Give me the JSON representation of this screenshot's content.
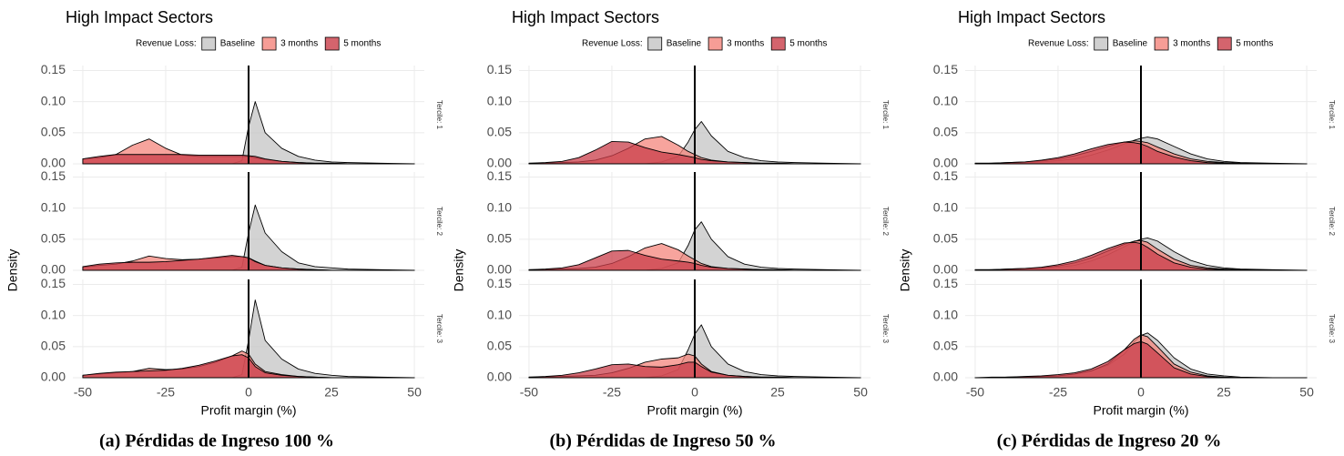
{
  "chart_data": [
    {
      "type": "density",
      "title": "High Impact Sectors",
      "legend_title": "Revenue Loss:",
      "x_label": "Profit margin (%)",
      "y_label": "Density",
      "caption": "(a) Pérdidas de Ingreso 100 %",
      "vline": 0,
      "xlim": [
        -53,
        53
      ],
      "xticks": [
        -50,
        -25,
        0,
        25,
        50
      ],
      "ylim": [
        0,
        0.158
      ],
      "yticks": [
        {
          "value": 0,
          "label": "0.00"
        },
        {
          "value": 0.05,
          "label": "0.05"
        },
        {
          "value": 0.1,
          "label": "0.10"
        },
        {
          "value": 0.15,
          "label": "0.15"
        }
      ],
      "grid": true,
      "series": [
        {
          "name": "Baseline",
          "color": "#c4c4c4"
        },
        {
          "name": "3 months",
          "color": "#f4857c"
        },
        {
          "name": "5 months",
          "color": "#c93d49"
        }
      ],
      "x": [
        -50,
        -45,
        -40,
        -35,
        -30,
        -25,
        -20,
        -15,
        -10,
        -5,
        -2,
        0,
        2,
        5,
        10,
        15,
        20,
        25,
        30,
        40,
        50
      ],
      "facets": [
        {
          "label": "Tercile: 1",
          "values": [
            [
              0,
              0,
              0,
              0,
              0,
              0,
              0,
              0,
              0,
              0,
              0.005,
              0.06,
              0.1,
              0.05,
              0.025,
              0.012,
              0.006,
              0.003,
              0.002,
              0.001,
              0
            ],
            [
              0.008,
              0.01,
              0.015,
              0.03,
              0.04,
              0.025,
              0.014,
              0.012,
              0.012,
              0.012,
              0.012,
              0.012,
              0.01,
              0.007,
              0.004,
              0.002,
              0.001,
              0.001,
              0,
              0,
              0
            ],
            [
              0.008,
              0.012,
              0.015,
              0.015,
              0.015,
              0.015,
              0.015,
              0.014,
              0.014,
              0.014,
              0.014,
              0.013,
              0.012,
              0.008,
              0.004,
              0.002,
              0.001,
              0.001,
              0,
              0,
              0
            ]
          ]
        },
        {
          "label": "Tercile: 2",
          "values": [
            [
              0,
              0,
              0,
              0,
              0,
              0,
              0,
              0,
              0,
              0,
              0.005,
              0.06,
              0.105,
              0.06,
              0.03,
              0.012,
              0.006,
              0.004,
              0.002,
              0.001,
              0
            ],
            [
              0.005,
              0.008,
              0.01,
              0.015,
              0.023,
              0.019,
              0.017,
              0.018,
              0.02,
              0.022,
              0.022,
              0.02,
              0.015,
              0.008,
              0.004,
              0.002,
              0.001,
              0,
              0,
              0,
              0
            ],
            [
              0.006,
              0.01,
              0.012,
              0.013,
              0.013,
              0.014,
              0.016,
              0.018,
              0.021,
              0.024,
              0.022,
              0.02,
              0.014,
              0.008,
              0.004,
              0.002,
              0.001,
              0,
              0,
              0,
              0
            ]
          ]
        },
        {
          "label": "Tercile: 3",
          "values": [
            [
              0,
              0,
              0,
              0,
              0,
              0,
              0,
              0,
              0,
              0,
              0.005,
              0.06,
              0.125,
              0.06,
              0.03,
              0.014,
              0.007,
              0.004,
              0.002,
              0.001,
              0
            ],
            [
              0.004,
              0.006,
              0.008,
              0.01,
              0.015,
              0.013,
              0.014,
              0.018,
              0.025,
              0.035,
              0.043,
              0.038,
              0.022,
              0.01,
              0.005,
              0.002,
              0.001,
              0,
              0,
              0,
              0
            ],
            [
              0.004,
              0.007,
              0.009,
              0.01,
              0.011,
              0.012,
              0.015,
              0.02,
              0.027,
              0.035,
              0.037,
              0.032,
              0.018,
              0.008,
              0.004,
              0.002,
              0.001,
              0,
              0,
              0,
              0
            ]
          ]
        }
      ]
    },
    {
      "type": "density",
      "title": "High Impact Sectors",
      "legend_title": "Revenue Loss:",
      "x_label": "Profit margin (%)",
      "y_label": "Density",
      "caption": "(b) Pérdidas de Ingreso 50 %",
      "vline": 0,
      "xlim": [
        -53,
        53
      ],
      "xticks": [
        -50,
        -25,
        0,
        25,
        50
      ],
      "ylim": [
        0,
        0.158
      ],
      "yticks": [
        {
          "value": 0,
          "label": "0.00"
        },
        {
          "value": 0.05,
          "label": "0.05"
        },
        {
          "value": 0.1,
          "label": "0.10"
        },
        {
          "value": 0.15,
          "label": "0.15"
        }
      ],
      "grid": true,
      "series": [
        {
          "name": "Baseline",
          "color": "#c4c4c4"
        },
        {
          "name": "3 months",
          "color": "#f4857c"
        },
        {
          "name": "5 months",
          "color": "#c93d49"
        }
      ],
      "x": [
        -50,
        -45,
        -40,
        -35,
        -30,
        -25,
        -20,
        -15,
        -10,
        -5,
        -2,
        0,
        2,
        5,
        10,
        15,
        20,
        25,
        30,
        40,
        50
      ],
      "facets": [
        {
          "label": "Tercile: 1",
          "values": [
            [
              0,
              0,
              0,
              0,
              0,
              0,
              0,
              0,
              0.003,
              0.012,
              0.035,
              0.055,
              0.068,
              0.045,
              0.02,
              0.01,
              0.005,
              0.003,
              0.002,
              0.001,
              0
            ],
            [
              0.001,
              0.001,
              0.002,
              0.003,
              0.006,
              0.013,
              0.025,
              0.04,
              0.044,
              0.03,
              0.02,
              0.015,
              0.01,
              0.006,
              0.003,
              0.002,
              0.001,
              0.001,
              0,
              0,
              0
            ],
            [
              0.001,
              0.002,
              0.004,
              0.01,
              0.022,
              0.036,
              0.035,
              0.026,
              0.019,
              0.015,
              0.012,
              0.01,
              0.007,
              0.005,
              0.003,
              0.002,
              0.001,
              0.001,
              0,
              0,
              0
            ]
          ]
        },
        {
          "label": "Tercile: 2",
          "values": [
            [
              0,
              0,
              0,
              0,
              0,
              0,
              0,
              0,
              0.003,
              0.012,
              0.04,
              0.065,
              0.078,
              0.05,
              0.022,
              0.01,
              0.005,
              0.003,
              0.002,
              0.001,
              0
            ],
            [
              0.001,
              0.001,
              0.002,
              0.003,
              0.005,
              0.011,
              0.022,
              0.036,
              0.043,
              0.033,
              0.023,
              0.017,
              0.011,
              0.006,
              0.003,
              0.002,
              0.001,
              0.001,
              0,
              0,
              0
            ],
            [
              0.001,
              0.002,
              0.004,
              0.009,
              0.02,
              0.031,
              0.032,
              0.024,
              0.018,
              0.015,
              0.013,
              0.011,
              0.008,
              0.005,
              0.003,
              0.002,
              0.001,
              0.001,
              0,
              0,
              0
            ]
          ]
        },
        {
          "label": "Tercile: 3",
          "values": [
            [
              0,
              0,
              0,
              0,
              0,
              0,
              0,
              0,
              0.003,
              0.013,
              0.045,
              0.07,
              0.085,
              0.05,
              0.022,
              0.01,
              0.005,
              0.003,
              0.002,
              0.001,
              0
            ],
            [
              0.001,
              0.001,
              0.002,
              0.003,
              0.004,
              0.008,
              0.015,
              0.025,
              0.03,
              0.032,
              0.038,
              0.035,
              0.022,
              0.01,
              0.004,
              0.002,
              0.001,
              0.001,
              0,
              0,
              0
            ],
            [
              0.001,
              0.002,
              0.004,
              0.008,
              0.014,
              0.021,
              0.022,
              0.018,
              0.017,
              0.021,
              0.025,
              0.025,
              0.018,
              0.009,
              0.004,
              0.002,
              0.001,
              0.001,
              0,
              0,
              0
            ]
          ]
        }
      ]
    },
    {
      "type": "density",
      "title": "High Impact Sectors",
      "legend_title": "Revenue Loss:",
      "x_label": "Profit margin (%)",
      "y_label": "Density",
      "caption": "(c) Pérdidas de Ingreso 20 %",
      "vline": 0,
      "xlim": [
        -53,
        53
      ],
      "xticks": [
        -50,
        -25,
        0,
        25,
        50
      ],
      "ylim": [
        0,
        0.158
      ],
      "yticks": [
        {
          "value": 0,
          "label": "0.00"
        },
        {
          "value": 0.05,
          "label": "0.05"
        },
        {
          "value": 0.1,
          "label": "0.10"
        },
        {
          "value": 0.15,
          "label": "0.15"
        }
      ],
      "grid": true,
      "series": [
        {
          "name": "Baseline",
          "color": "#c4c4c4"
        },
        {
          "name": "3 months",
          "color": "#f4857c"
        },
        {
          "name": "5 months",
          "color": "#c93d49"
        }
      ],
      "x": [
        -50,
        -45,
        -40,
        -35,
        -30,
        -25,
        -20,
        -15,
        -10,
        -5,
        -2,
        0,
        2,
        5,
        10,
        15,
        20,
        25,
        30,
        40,
        50
      ],
      "facets": [
        {
          "label": "Tercile: 1",
          "values": [
            [
              0,
              0.001,
              0.001,
              0.002,
              0.003,
              0.005,
              0.008,
              0.014,
              0.022,
              0.032,
              0.038,
              0.041,
              0.043,
              0.04,
              0.028,
              0.016,
              0.008,
              0.004,
              0.002,
              0.001,
              0
            ],
            [
              0.001,
              0.001,
              0.002,
              0.003,
              0.005,
              0.008,
              0.013,
              0.02,
              0.028,
              0.035,
              0.037,
              0.036,
              0.034,
              0.027,
              0.016,
              0.008,
              0.004,
              0.002,
              0.001,
              0,
              0
            ],
            [
              0.001,
              0.001,
              0.002,
              0.003,
              0.006,
              0.01,
              0.016,
              0.024,
              0.031,
              0.035,
              0.034,
              0.032,
              0.028,
              0.02,
              0.011,
              0.005,
              0.002,
              0.001,
              0,
              0,
              0
            ]
          ]
        },
        {
          "label": "Tercile: 2",
          "values": [
            [
              0,
              0.001,
              0.001,
              0.002,
              0.003,
              0.005,
              0.008,
              0.015,
              0.025,
              0.038,
              0.046,
              0.05,
              0.052,
              0.047,
              0.03,
              0.016,
              0.008,
              0.004,
              0.002,
              0.001,
              0
            ],
            [
              0.001,
              0.001,
              0.002,
              0.003,
              0.004,
              0.007,
              0.012,
              0.02,
              0.031,
              0.042,
              0.047,
              0.048,
              0.045,
              0.034,
              0.018,
              0.008,
              0.004,
              0.002,
              0.001,
              0,
              0
            ],
            [
              0.001,
              0.001,
              0.002,
              0.003,
              0.005,
              0.009,
              0.015,
              0.024,
              0.035,
              0.044,
              0.045,
              0.043,
              0.037,
              0.026,
              0.012,
              0.005,
              0.002,
              0.001,
              0,
              0,
              0
            ]
          ]
        },
        {
          "label": "Tercile: 3",
          "values": [
            [
              0,
              0,
              0.001,
              0.001,
              0.002,
              0.003,
              0.006,
              0.011,
              0.02,
              0.038,
              0.058,
              0.068,
              0.072,
              0.06,
              0.032,
              0.014,
              0.006,
              0.003,
              0.001,
              0,
              0
            ],
            [
              0,
              0,
              0.001,
              0.001,
              0.002,
              0.003,
              0.006,
              0.011,
              0.022,
              0.045,
              0.062,
              0.069,
              0.066,
              0.05,
              0.022,
              0.009,
              0.003,
              0.001,
              0,
              0,
              0
            ],
            [
              0,
              0.001,
              0.001,
              0.002,
              0.003,
              0.005,
              0.008,
              0.014,
              0.026,
              0.045,
              0.055,
              0.058,
              0.054,
              0.04,
              0.016,
              0.006,
              0.002,
              0.001,
              0,
              0,
              0
            ]
          ]
        }
      ]
    }
  ]
}
